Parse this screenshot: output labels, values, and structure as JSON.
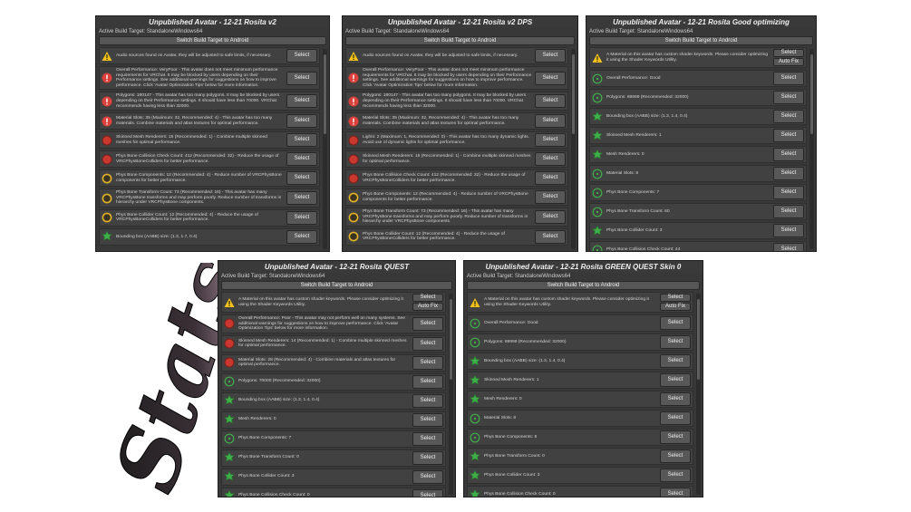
{
  "decoration": "Stats",
  "panels": [
    {
      "title": "Unpublished Avatar - 12-21 Rosita v2",
      "build_target": "Active Build Target: StandaloneWindows64",
      "switch_button": "Switch Build Target to Android",
      "rows": [
        {
          "icon": "warning",
          "text": "Audio sources found on Avatar, they will be adjusted to safe limits, if necessary.",
          "buttons": [
            "Select"
          ]
        },
        {
          "icon": "error",
          "text": "Overall Performance: VeryPoor - This avatar does not meet minimum performance requirements for VRChat. It may be blocked by users depending on their Performance settings. See additional warnings for suggestions on how to improve performance. Click 'Avatar Optimization Tips' below for more information.",
          "buttons": [
            "Select"
          ]
        },
        {
          "icon": "error",
          "text": "Polygons: 180147 - This avatar has too many polygons. It may be blocked by users depending on their Performance settings. It should have less than 70000. VRChat recommends having less than 32000.",
          "buttons": [
            "Select"
          ]
        },
        {
          "icon": "error",
          "text": "Material Slots: 35 (Maximum: 32, Recommended: 4) - This avatar has too many materials. Combine materials and atlas textures for optimal performance.",
          "buttons": [
            "Select"
          ]
        },
        {
          "icon": "red",
          "text": "Skinned Mesh Renderers: 15 (Recommended: 1) - Combine multiple skinned meshes for optimal performance.",
          "buttons": [
            "Select"
          ]
        },
        {
          "icon": "red",
          "text": "Phys Bone Collision Check Count: 412 (Recommended: 32) - Reduce the usage of VRCPhysBoneColliders for better performance.",
          "buttons": [
            "Select"
          ]
        },
        {
          "icon": "yellow",
          "text": "Phys Bone Components: 12 (Recommended: 4) - Reduce number of VRCPhysBone components for better performance.",
          "buttons": [
            "Select"
          ]
        },
        {
          "icon": "yellow",
          "text": "Phys Bone Transform Count: 73 (Recommended: 16) - This avatar has many VRCPhysBone transforms and may perform poorly. Reduce number of transforms in hierarchy under VRCPhysBone components.",
          "buttons": [
            "Select"
          ]
        },
        {
          "icon": "yellow",
          "text": "Phys Bone Collider Count: 12 (Recommended: 4) - Reduce the usage of VRCPhysBoneColliders for better performance.",
          "buttons": [
            "Select"
          ]
        },
        {
          "icon": "star",
          "text": "Bounding box (AABB) size: (1.3, 1.7, 0.4)",
          "buttons": [
            "Select"
          ]
        }
      ]
    },
    {
      "title": "Unpublished Avatar - 12-21 Rosita v2 DPS",
      "build_target": "Active Build Target: StandaloneWindows64",
      "switch_button": "Switch Build Target to Android",
      "rows": [
        {
          "icon": "warning",
          "text": "Audio sources found on Avatar, they will be adjusted to safe limits, if necessary.",
          "buttons": [
            "Select"
          ]
        },
        {
          "icon": "error",
          "text": "Overall Performance: VeryPoor - This avatar does not meet minimum performance requirements for VRChat. It may be blocked by users depending on their Performance settings. See additional warnings for suggestions on how to improve performance. Click 'Avatar Optimization Tips' below for more information.",
          "buttons": [
            "Select"
          ]
        },
        {
          "icon": "error",
          "text": "Polygons: 180147 - This avatar has too many polygons. It may be blocked by users depending on their Performance settings. It should have less than 70000. VRChat recommends having less than 32000.",
          "buttons": [
            "Select"
          ]
        },
        {
          "icon": "error",
          "text": "Material Slots: 35 (Maximum: 32, Recommended: 4) - This avatar has too many materials. Combine materials and atlas textures for optimal performance.",
          "buttons": [
            "Select"
          ]
        },
        {
          "icon": "red",
          "text": "Lights: 2 (Maximum: 1, Recommended: 0) - This avatar has too many dynamic lights. Avoid use of dynamic lights for optimal performance.",
          "buttons": [
            "Select"
          ]
        },
        {
          "icon": "red",
          "text": "Skinned Mesh Renderers: 15 (Recommended: 1) - Combine multiple skinned meshes for optimal performance.",
          "buttons": [
            "Select"
          ]
        },
        {
          "icon": "red",
          "text": "Phys Bone Collision Check Count: 412 (Recommended: 32) - Reduce the usage of VRCPhysBoneColliders for better performance.",
          "buttons": [
            "Select"
          ]
        },
        {
          "icon": "yellow",
          "text": "Phys Bone Components: 12 (Recommended: 4) - Reduce number of VRCPhysBone components for better performance.",
          "buttons": [
            "Select"
          ]
        },
        {
          "icon": "yellow",
          "text": "Phys Bone Transform Count: 73 (Recommended: 16) - This avatar has many VRCPhysBone transforms and may perform poorly. Reduce number of transforms in hierarchy under VRCPhysBone components.",
          "buttons": [
            "Select"
          ]
        },
        {
          "icon": "yellow",
          "text": "Phys Bone Collider Count: 12 (Recommended: 4) - Reduce the usage of VRCPhysBoneColliders for better performance.",
          "buttons": [
            "Select"
          ]
        }
      ]
    },
    {
      "title": "Unpublished Avatar - 12-21 Rosita Good optimizing",
      "build_target": "Active Build Target: StandaloneWindows64",
      "switch_button": "Switch Build Target to Android",
      "rows": [
        {
          "icon": "warning",
          "text": "A Material on this avatar has custom shader keywords. Please consider optimizing it using the Shader Keywords Utility.",
          "buttons": [
            "Select",
            "Auto Fix"
          ]
        },
        {
          "icon": "good",
          "text": "Overall Performance: Good",
          "buttons": [
            "Select"
          ]
        },
        {
          "icon": "good",
          "text": "Polygons: 69999 (Recommended: 32000)",
          "buttons": [
            "Select"
          ]
        },
        {
          "icon": "star",
          "text": "Bounding box (AABB) size: (1.3, 1.4, 0.4)",
          "buttons": [
            "Select"
          ]
        },
        {
          "icon": "star",
          "text": "Skinned Mesh Renderers: 1",
          "buttons": [
            "Select"
          ]
        },
        {
          "icon": "star",
          "text": "Mesh Renderers: 0",
          "buttons": [
            "Select"
          ]
        },
        {
          "icon": "good",
          "text": "Material Slots: 8",
          "buttons": [
            "Select"
          ]
        },
        {
          "icon": "good",
          "text": "Phys Bone Components: 7",
          "buttons": [
            "Select"
          ]
        },
        {
          "icon": "good",
          "text": "Phys Bone Transform Count: 60",
          "buttons": [
            "Select"
          ]
        },
        {
          "icon": "star",
          "text": "Phys Bone Collider Count: 3",
          "buttons": [
            "Select"
          ]
        },
        {
          "icon": "good",
          "text": "Phys Bone Collision Check Count: 44",
          "buttons": [
            "Select"
          ]
        }
      ]
    },
    {
      "title": "Unpublished Avatar - 12-21 Rosita QUEST",
      "build_target": "Active Build Target: StandaloneWindows64",
      "switch_button": "Switch Build Target to Android",
      "rows": [
        {
          "icon": "warning",
          "text": "A Material on this avatar has custom shader keywords. Please consider optimizing it using the Shader Keywords Utility.",
          "buttons": [
            "Select",
            "Auto Fix"
          ]
        },
        {
          "icon": "red",
          "text": "Overall Performance: Poor - This avatar may not perform well on many systems. See additional warnings for suggestions on how to improve performance. Click 'Avatar Optimization Tips' below for more information.",
          "buttons": [
            "Select"
          ]
        },
        {
          "icon": "red",
          "text": "Skinned Mesh Renderers: 14 (Recommended: 1) - Combine multiple skinned meshes for optimal performance.",
          "buttons": [
            "Select"
          ]
        },
        {
          "icon": "red",
          "text": "Material Slots: 28 (Recommended: 4) - Combine materials and atlas textures for optimal performance.",
          "buttons": [
            "Select"
          ]
        },
        {
          "icon": "good",
          "text": "Polygons: 70000 (Recommended: 32000)",
          "buttons": [
            "Select"
          ]
        },
        {
          "icon": "star",
          "text": "Bounding box (AABB) size: (1.3, 1.4, 0.4)",
          "buttons": [
            "Select"
          ]
        },
        {
          "icon": "star",
          "text": "Mesh Renderers: 0",
          "buttons": [
            "Select"
          ]
        },
        {
          "icon": "good",
          "text": "Phys Bone Components: 7",
          "buttons": [
            "Select"
          ]
        },
        {
          "icon": "star",
          "text": "Phys Bone Transform Count: 0",
          "buttons": [
            "Select"
          ]
        },
        {
          "icon": "star",
          "text": "Phys Bone Collider Count: 3",
          "buttons": [
            "Select"
          ]
        },
        {
          "icon": "star",
          "text": "Phys Bone Collision Check Count: 0",
          "buttons": [
            "Select"
          ]
        }
      ]
    },
    {
      "title": "Unpublished Avatar - 12-21 Rosita GREEN QUEST Skin 0",
      "build_target": "Active Build Target: StandaloneWindows64",
      "switch_button": "Switch Build Target to Android",
      "rows": [
        {
          "icon": "warning",
          "text": "A Material on this avatar has custom shader keywords. Please consider optimizing it using the Shader Keywords Utility.",
          "buttons": [
            "Select",
            "Auto Fix"
          ]
        },
        {
          "icon": "good",
          "text": "Overall Performance: Good",
          "buttons": [
            "Select"
          ]
        },
        {
          "icon": "good",
          "text": "Polygons: 69999 (Recommended: 32000)",
          "buttons": [
            "Select"
          ]
        },
        {
          "icon": "star",
          "text": "Bounding box (AABB) size: (1.3, 1.4, 0.4)",
          "buttons": [
            "Select"
          ]
        },
        {
          "icon": "star",
          "text": "Skinned Mesh Renderers: 1",
          "buttons": [
            "Select"
          ]
        },
        {
          "icon": "star",
          "text": "Mesh Renderers: 0",
          "buttons": [
            "Select"
          ]
        },
        {
          "icon": "good",
          "text": "Material Slots: 8",
          "buttons": [
            "Select"
          ]
        },
        {
          "icon": "good",
          "text": "Phys Bone Components: 8",
          "buttons": [
            "Select"
          ]
        },
        {
          "icon": "star",
          "text": "Phys Bone Transform Count: 0",
          "buttons": [
            "Select"
          ]
        },
        {
          "icon": "star",
          "text": "Phys Bone Collider Count: 3",
          "buttons": [
            "Select"
          ]
        },
        {
          "icon": "star",
          "text": "Phys Bone Collision Check Count: 0",
          "buttons": [
            "Select"
          ]
        }
      ]
    }
  ]
}
